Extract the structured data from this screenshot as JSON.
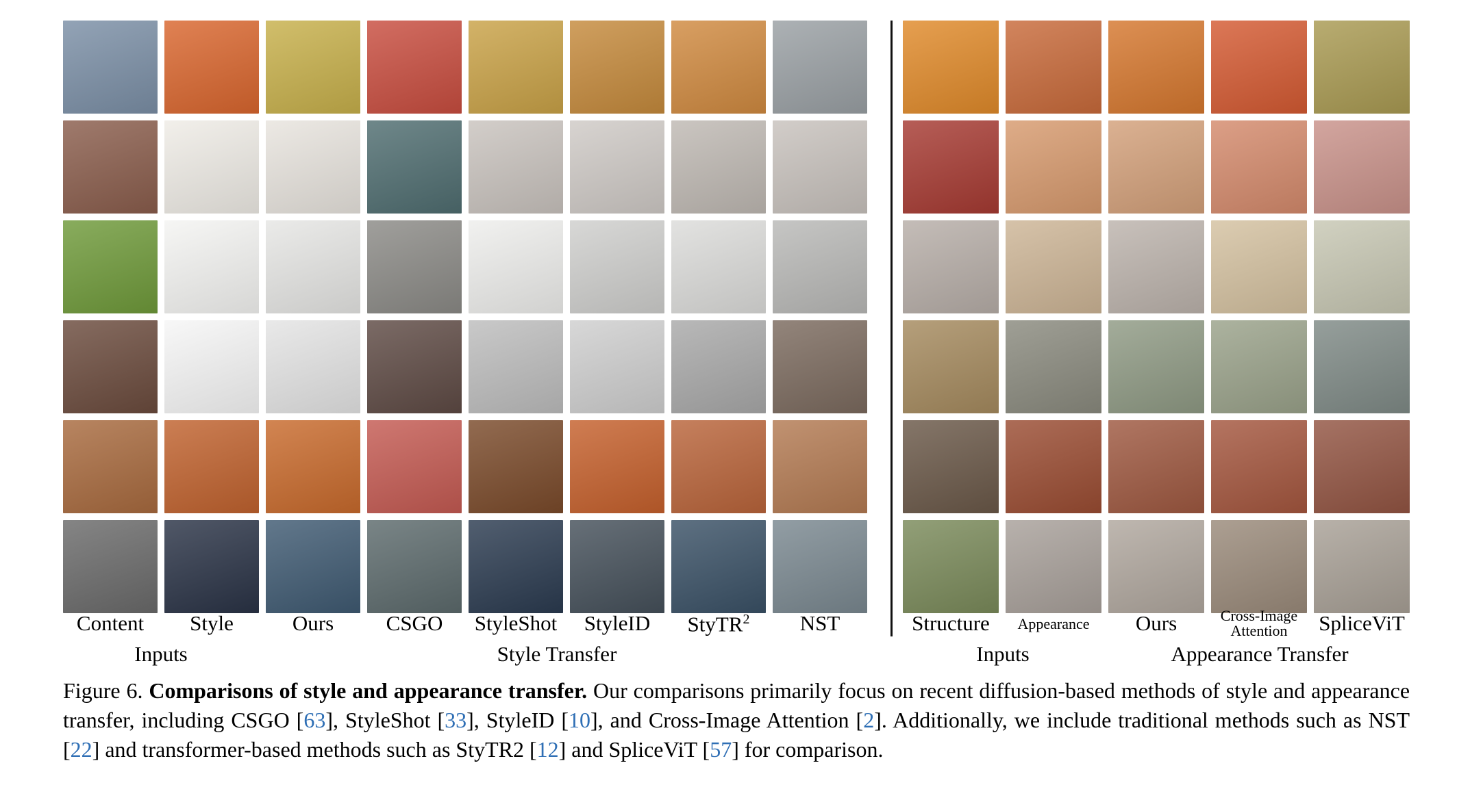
{
  "style_panel": {
    "columns": [
      "Content",
      "Style",
      "Ours",
      "CSGO",
      "StyleShot",
      "StyleID",
      "StyTR",
      "NST"
    ],
    "stytr_superscript": "2",
    "groups": {
      "inputs": "Inputs",
      "method": "Style Transfer"
    },
    "row_colors": [
      [
        "#7b8fa6",
        "#d9662e",
        "#c7b04b",
        "#c84d3f",
        "#c9a247",
        "#c58a3c",
        "#d08a40",
        "#9aa0a4"
      ],
      [
        "#8a5d4c",
        "#efece6",
        "#e8e4de",
        "#4f6d70",
        "#c9c3be",
        "#cfcac6",
        "#bfb9b3",
        "#c8c2bd"
      ],
      [
        "#6f9a3a",
        "#f4f4f2",
        "#e6e6e4",
        "#8b8a86",
        "#eeeeec",
        "#cfcfcd",
        "#dcdcda",
        "#b9b9b7"
      ],
      [
        "#6b4b3d",
        "#f6f6f6",
        "#e4e4e4",
        "#5e4a44",
        "#bdbdbd",
        "#cfcfcf",
        "#a9a9a9",
        "#7b6a5e"
      ],
      [
        "#a86a3e",
        "#c0622e",
        "#c86a2c",
        "#c45a52",
        "#7a4a2a",
        "#c5602c",
        "#b9643a",
        "#b37a52"
      ],
      [
        "#6a6a6a",
        "#2a3346",
        "#3f5a72",
        "#5c6a6c",
        "#2b3b50",
        "#45505a",
        "#3a5166",
        "#7a8890"
      ]
    ]
  },
  "appearance_panel": {
    "columns": [
      "Structure",
      "Appearance",
      "Ours",
      "Cross-Image",
      "SpliceViT"
    ],
    "cross_image_line2": "Attention",
    "groups": {
      "inputs": "Inputs",
      "method": "Appearance Transfer"
    },
    "row_colors": [
      [
        "#e08a2a",
        "#c86a3a",
        "#d5772e",
        "#d45a32",
        "#a99a52"
      ],
      [
        "#a63a32",
        "#d79a6e",
        "#d3a07a",
        "#d48a6c",
        "#c9928a"
      ],
      [
        "#b7aea8",
        "#cdb596",
        "#bcb3ac",
        "#d4c1a0",
        "#c7c7b3"
      ],
      [
        "#a58a5e",
        "#8a8a7e",
        "#8f9a84",
        "#9aa28a",
        "#7f8a86"
      ],
      [
        "#6a5848",
        "#9a4c32",
        "#9e5840",
        "#a4563e",
        "#925442"
      ],
      [
        "#7a8a5a",
        "#a8a09a",
        "#b0a79e",
        "#9a8a7a",
        "#a8a096"
      ]
    ]
  },
  "caption": {
    "prefix": "Figure 6. ",
    "bold": "Comparisons of style and appearance transfer.",
    "t1": " Our comparisons primarily focus on recent diffusion-based methods of style and appearance transfer, including CSGO [",
    "c1": "63",
    "t2": "], StyleShot [",
    "c2": "33",
    "t3": "], StyleID [",
    "c3": "10",
    "t4": "], and Cross-Image Attention [",
    "c4": "2",
    "t5": "].  Additionally, we include traditional methods such as NST [",
    "c5": "22",
    "t6": "] and transformer-based methods such as StyTR2 [",
    "c6": "12",
    "t7": "] and SpliceViT [",
    "c7": "57",
    "t8": "] for comparison."
  }
}
